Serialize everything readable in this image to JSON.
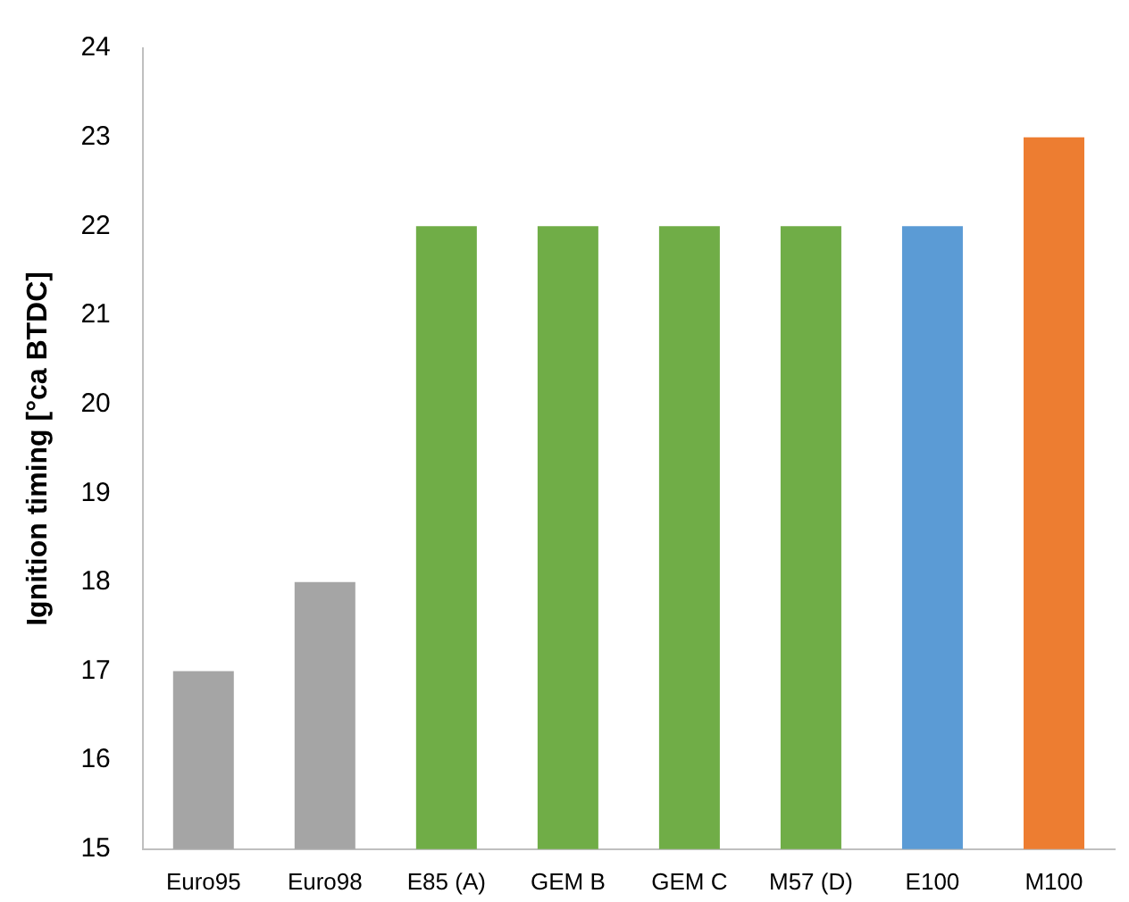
{
  "chart_data": {
    "type": "bar",
    "ylabel": "Ignition timing [°ca BTDC]",
    "categories": [
      "Euro95",
      "Euro98",
      "E85 (A)",
      "GEM B",
      "GEM C",
      "M57 (D)",
      "E100",
      "M100"
    ],
    "values": [
      17,
      18,
      22,
      22,
      22,
      22,
      22,
      23
    ],
    "colors": [
      "#a5a5a5",
      "#a5a5a5",
      "#70ad47",
      "#70ad47",
      "#70ad47",
      "#70ad47",
      "#5b9bd5",
      "#ed7d31"
    ],
    "ylim": [
      15,
      24
    ],
    "yticks": [
      15,
      16,
      17,
      18,
      19,
      20,
      21,
      22,
      23,
      24
    ],
    "grid": false,
    "legend": false
  }
}
